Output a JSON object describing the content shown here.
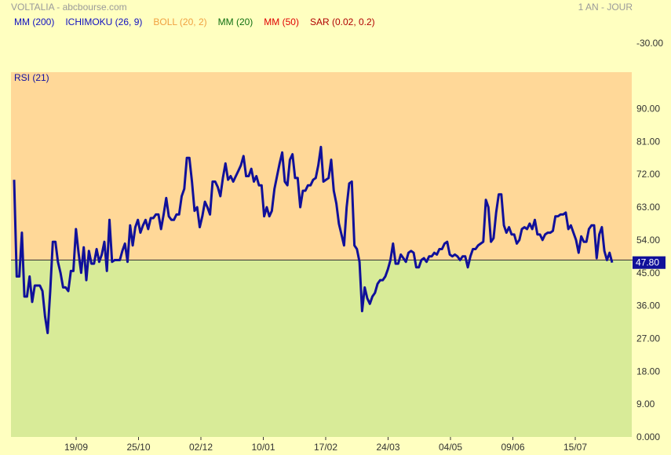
{
  "header": {
    "title": "VOLTALIA - abcbourse.com",
    "period": "1 AN - JOUR"
  },
  "legend": [
    {
      "label": "MM (200)",
      "color": "#1010c0"
    },
    {
      "label": "ICHIMOKU (26, 9)",
      "color": "#1010c0"
    },
    {
      "label": "BOLL (20, 2)",
      "color": "#f0a040"
    },
    {
      "label": "MM (20)",
      "color": "#107010"
    },
    {
      "label": "MM (50)",
      "color": "#e00000"
    },
    {
      "label": "SAR (0.02, 0.2)",
      "color": "#b00000"
    }
  ],
  "top_axis_label": "-30.00",
  "colors": {
    "line": "#10109a",
    "overbought_zone": "#ffd898",
    "oversold_zone": "#d8eb98",
    "background": "#ffffc0",
    "value_badge": "#10109a"
  },
  "chart_data": {
    "type": "line",
    "title": "RSI (21)",
    "ylim": [
      0,
      100
    ],
    "y_ticks": [
      "90.00",
      "81.00",
      "72.00",
      "63.00",
      "54.00",
      "45.00",
      "36.00",
      "27.00",
      "18.00",
      "9.00",
      "0.000"
    ],
    "y_tick_values": [
      90,
      81,
      72,
      63,
      54,
      45,
      36,
      27,
      18,
      9,
      0
    ],
    "x_ticks": [
      "19/09",
      "25/10",
      "02/12",
      "10/01",
      "17/02",
      "24/03",
      "04/05",
      "09/06",
      "15/07"
    ],
    "reference_value": 48.5,
    "current_value_label": "47.80",
    "series": [
      {
        "values": [
          70.5,
          44.0,
          44.0,
          56.0,
          38.5,
          38.5,
          44.0,
          37.0,
          41.5,
          41.5,
          41.5,
          40.0,
          33.0,
          28.5,
          40.0,
          53.5,
          53.5,
          48.0,
          45.0,
          41.0,
          41.0,
          40.0,
          45.5,
          45.5,
          57.0,
          50.5,
          45.0,
          52.0,
          43.0,
          51.0,
          47.5,
          47.5,
          51.5,
          48.0,
          50.0,
          53.5,
          45.5,
          59.5,
          48.0,
          48.5,
          48.5,
          48.5,
          51.0,
          53.0,
          48.0,
          58.0,
          52.5,
          57.5,
          59.5,
          56.0,
          58.0,
          59.5,
          57.0,
          60.0,
          60.0,
          61.0,
          61.0,
          57.0,
          61.0,
          65.5,
          60.5,
          59.5,
          59.5,
          61.0,
          61.0,
          66.0,
          68.0,
          76.5,
          76.5,
          70.0,
          62.0,
          63.0,
          57.5,
          60.5,
          64.5,
          63.0,
          61.0,
          70.0,
          70.0,
          68.5,
          66.0,
          71.0,
          75.0,
          70.5,
          71.5,
          70.0,
          71.5,
          73.0,
          74.5,
          77.0,
          71.5,
          71.5,
          73.5,
          70.0,
          71.5,
          69.0,
          69.0,
          60.5,
          63.0,
          60.5,
          62.0,
          68.0,
          71.5,
          75.0,
          78.0,
          70.0,
          69.0,
          76.0,
          77.5,
          71.0,
          71.0,
          63.0,
          67.5,
          67.5,
          69.0,
          69.0,
          70.5,
          71.0,
          74.5,
          79.5,
          70.0,
          70.5,
          71.0,
          76.0,
          67.5,
          64.0,
          58.5,
          55.5,
          52.5,
          63.0,
          69.5,
          70.0,
          52.5,
          51.5,
          48.0,
          34.5,
          41.0,
          38.0,
          36.5,
          38.5,
          39.5,
          42.0,
          43.0,
          43.0,
          44.0,
          46.0,
          48.5,
          53.0,
          47.5,
          47.5,
          50.0,
          49.0,
          48.0,
          50.5,
          51.0,
          50.5,
          46.5,
          46.5,
          48.5,
          49.0,
          48.0,
          49.5,
          49.5,
          50.5,
          50.0,
          51.5,
          51.5,
          53.0,
          53.5,
          50.0,
          49.5,
          50.0,
          49.5,
          48.5,
          49.5,
          49.5,
          46.5,
          49.5,
          51.5,
          51.5,
          52.5,
          53.0,
          53.5,
          65.0,
          63.0,
          53.5,
          54.5,
          61.5,
          66.5,
          66.5,
          58.0,
          56.0,
          57.5,
          55.5,
          55.5,
          53.0,
          54.0,
          57.0,
          57.5,
          57.0,
          58.5,
          57.0,
          59.5,
          55.5,
          55.5,
          54.0,
          55.5,
          56.0,
          56.0,
          56.5,
          60.5,
          60.5,
          61.0,
          61.0,
          61.5,
          57.0,
          58.0,
          56.0,
          54.0,
          50.5,
          55.0,
          53.5,
          53.5,
          57.0,
          58.0,
          58.0,
          49.0,
          55.5,
          57.5,
          51.0,
          48.5,
          50.5,
          47.8
        ]
      }
    ]
  }
}
